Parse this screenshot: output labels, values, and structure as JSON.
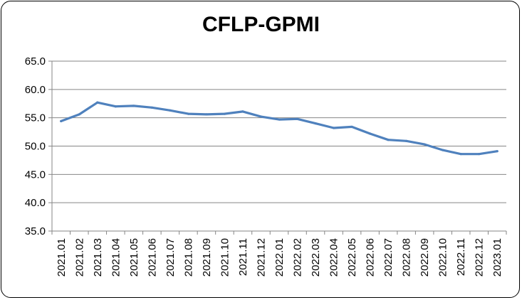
{
  "chart_data": {
    "type": "line",
    "title": "CFLP-GPMI",
    "xlabel": "",
    "ylabel": "",
    "ylim": [
      35.0,
      65.0
    ],
    "yticks": [
      "35.0",
      "40.0",
      "45.0",
      "50.0",
      "55.0",
      "60.0",
      "65.0"
    ],
    "grid": true,
    "legend": "none",
    "line_color": "#4f81bd",
    "categories": [
      "2021.01",
      "2021.02",
      "2021.03",
      "2021.04",
      "2021.05",
      "2021.06",
      "2021.07",
      "2021.08",
      "2021.09",
      "2021.10",
      "2021.11",
      "2021.12",
      "2022.01",
      "2022.02",
      "2022.03",
      "2022.04",
      "2022.05",
      "2022.06",
      "2022.07",
      "2022.08",
      "2022.09",
      "2022.10",
      "2022.11",
      "2022.12",
      "2023.01"
    ],
    "series": [
      {
        "values": [
          54.4,
          55.6,
          57.7,
          57.0,
          57.1,
          56.8,
          56.3,
          55.7,
          55.6,
          55.7,
          56.1,
          55.2,
          54.7,
          54.8,
          54.0,
          53.2,
          53.4,
          52.2,
          51.1,
          50.9,
          50.3,
          49.3,
          48.6,
          48.6,
          49.1
        ]
      }
    ]
  }
}
